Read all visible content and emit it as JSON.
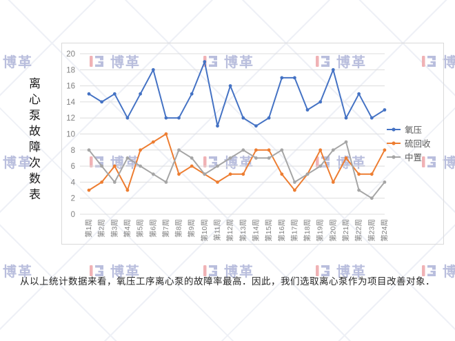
{
  "watermark": {
    "brand_text": "博革",
    "color": "#b9bedd",
    "accent_color": "#f0b2b5"
  },
  "side_title": {
    "text": "离心泵故障次数表"
  },
  "chart_data": {
    "type": "line",
    "title": "",
    "xlabel": "",
    "ylabel": "",
    "ylim": [
      0,
      20
    ],
    "ytick_step": 2,
    "grid": true,
    "legend_position": "right",
    "categories": [
      "第1周",
      "第2周",
      "第3周",
      "第4周",
      "第5周",
      "第6周",
      "第7周",
      "第8周",
      "第9周",
      "第10周",
      "第11周",
      "第12周",
      "第13周",
      "第14周",
      "第15周",
      "第16周",
      "第17周",
      "第18周",
      "第19周",
      "第20周",
      "第21周",
      "第22周",
      "第23周",
      "第24周"
    ],
    "series": [
      {
        "name": "氧压",
        "color": "#4472C4",
        "values": [
          15,
          14,
          15,
          12,
          15,
          18,
          12,
          12,
          15,
          19,
          11,
          16,
          12,
          11,
          12,
          17,
          17,
          13,
          14,
          18,
          12,
          15,
          12,
          13
        ]
      },
      {
        "name": "硫回收",
        "color": "#ED7D31",
        "values": [
          3,
          4,
          6,
          3,
          8,
          9,
          10,
          5,
          6,
          5,
          4,
          5,
          5,
          8,
          8,
          5,
          3,
          5,
          8,
          4,
          7,
          5,
          5,
          8
        ]
      },
      {
        "name": "中置",
        "color": "#A5A5A5",
        "values": [
          8,
          6,
          4,
          7,
          6,
          5,
          4,
          8,
          7,
          5,
          6,
          7,
          8,
          7,
          7,
          8,
          4,
          5,
          6,
          8,
          9,
          3,
          2,
          4
        ]
      }
    ]
  },
  "footer": {
    "text": "从以上统计数据来看，氧压工序离心泵的故障率最高．因此，我们选取离心泵作为项目改善对象．"
  }
}
